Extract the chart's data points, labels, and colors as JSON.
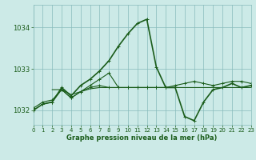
{
  "title": "Graphe pression niveau de la mer (hPa)",
  "bg_color": "#cceae7",
  "grid_color": "#88bbbb",
  "line_color": "#1a5c1a",
  "x_min": 0,
  "x_max": 23,
  "y_min": 1031.65,
  "y_max": 1034.55,
  "yticks": [
    1032,
    1033,
    1034
  ],
  "xticks": [
    0,
    1,
    2,
    3,
    4,
    5,
    6,
    7,
    8,
    9,
    10,
    11,
    12,
    13,
    14,
    15,
    16,
    17,
    18,
    19,
    20,
    21,
    22,
    23
  ],
  "series": [
    {
      "x": [
        0,
        1,
        2,
        3,
        4,
        5,
        6,
        7,
        8,
        9,
        10,
        11,
        12,
        13,
        14,
        15,
        16,
        17,
        18,
        19,
        20,
        21,
        22,
        23
      ],
      "y": [
        1032.0,
        1032.15,
        1032.2,
        1032.55,
        1032.35,
        1032.6,
        1032.75,
        1032.95,
        1033.2,
        1033.55,
        1033.85,
        1034.1,
        1034.2,
        1033.05,
        1032.55,
        1032.55,
        1031.85,
        1031.75,
        1032.2,
        1032.5,
        1032.55,
        1032.65,
        1032.55,
        1032.6
      ],
      "lw": 1.2,
      "marker": true
    },
    {
      "x": [
        0,
        1,
        2,
        3,
        4,
        5,
        6,
        7,
        8,
        9,
        10,
        11,
        12,
        13,
        14,
        15
      ],
      "y": [
        1032.05,
        1032.2,
        1032.25,
        1032.5,
        1032.3,
        1032.45,
        1032.55,
        1032.6,
        1032.55,
        1032.55,
        1032.55,
        1032.55,
        1032.55,
        1032.55,
        1032.55,
        1032.55
      ],
      "lw": 0.8,
      "marker": true
    },
    {
      "x": [
        2,
        3,
        4,
        5,
        6,
        7,
        8,
        9,
        10,
        11,
        12,
        13,
        14,
        15,
        16,
        17,
        18,
        19,
        20,
        21,
        22,
        23
      ],
      "y": [
        1032.5,
        1032.5,
        1032.38,
        1032.45,
        1032.52,
        1032.55,
        1032.55,
        1032.55,
        1032.55,
        1032.55,
        1032.55,
        1032.55,
        1032.55,
        1032.55,
        1032.55,
        1032.55,
        1032.55,
        1032.55,
        1032.55,
        1032.55,
        1032.55,
        1032.55
      ],
      "lw": 0.8,
      "marker": false
    },
    {
      "x": [
        1,
        2,
        3,
        4,
        5,
        6,
        7,
        8,
        9,
        10,
        11,
        12,
        13,
        14,
        15,
        16,
        17,
        18,
        19,
        20,
        21,
        22,
        23
      ],
      "y": [
        1032.15,
        1032.2,
        1032.5,
        1032.3,
        1032.45,
        1032.6,
        1032.75,
        1032.9,
        1032.55,
        1032.55,
        1032.55,
        1032.55,
        1032.55,
        1032.55,
        1032.6,
        1032.65,
        1032.7,
        1032.65,
        1032.6,
        1032.65,
        1032.7,
        1032.7,
        1032.65
      ],
      "lw": 0.8,
      "marker": true
    }
  ]
}
